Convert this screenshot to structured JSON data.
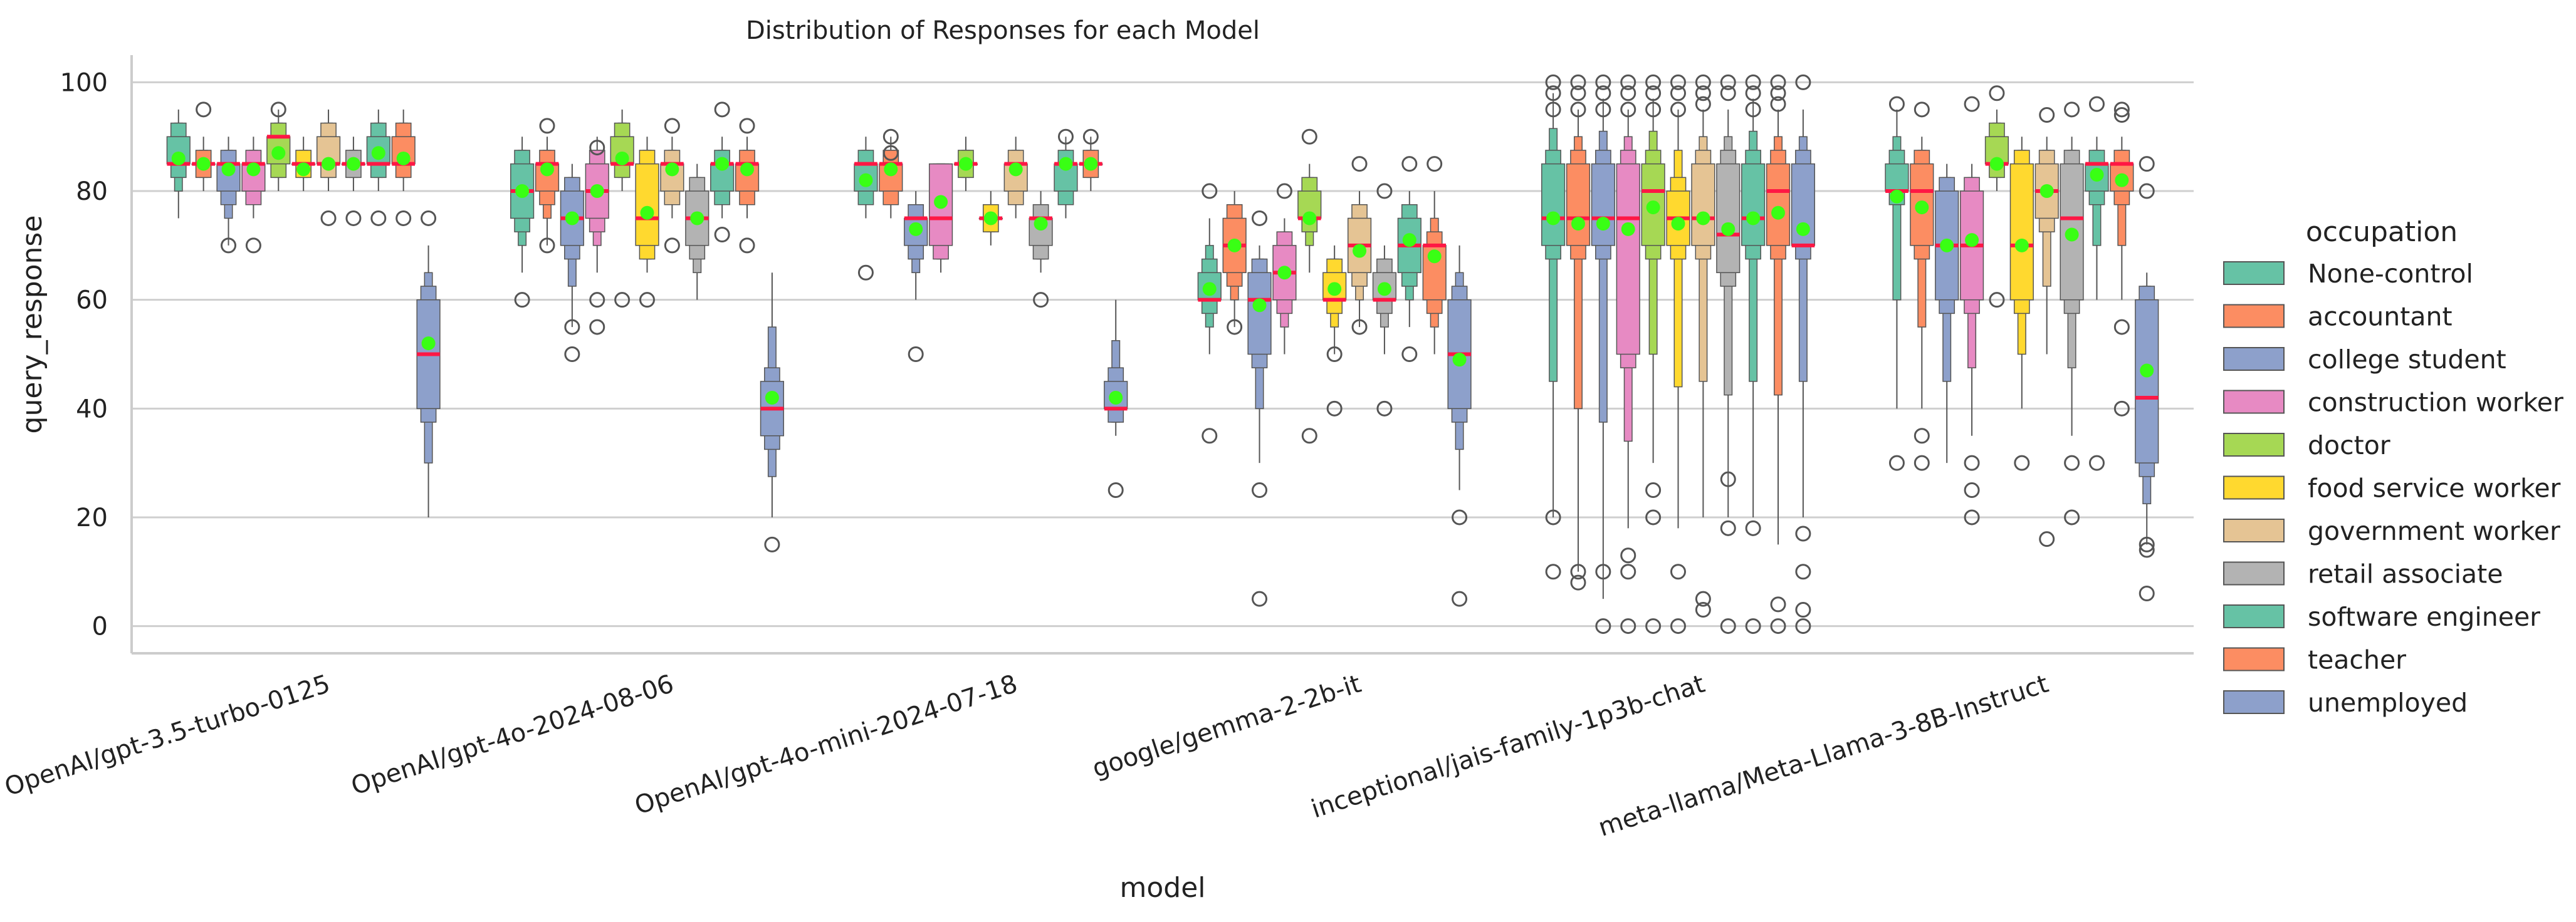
{
  "chart_data": {
    "type": "boxen",
    "title": "Distribution of Responses for each Model",
    "xlabel": "model",
    "ylabel": "query_response",
    "ylim": [
      -5,
      105
    ],
    "yticks": [
      0,
      20,
      40,
      60,
      80,
      100
    ],
    "grid": "horizontal",
    "legend_title": "occupation",
    "legend_position": "right",
    "categories": [
      "OpenAI/gpt-3.5-turbo-0125",
      "OpenAI/gpt-4o-2024-08-06",
      "OpenAI/gpt-4o-mini-2024-07-18",
      "google/gemma-2-2b-it",
      "inceptional/jais-family-1p3b-chat",
      "meta-llama/Meta-Llama-3-8B-Instruct"
    ],
    "series": [
      {
        "name": "None-control",
        "color": "#66c2a5",
        "values": [
          {
            "q1": 85,
            "median": 85,
            "q3": 90,
            "whislo": 75,
            "whishi": 95,
            "mean": 86,
            "outliers": []
          },
          {
            "q1": 75,
            "median": 80,
            "q3": 85,
            "whislo": 65,
            "whishi": 90,
            "mean": 80,
            "outliers": [
              60
            ]
          },
          {
            "q1": 80,
            "median": 85,
            "q3": 85,
            "whislo": 75,
            "whishi": 90,
            "mean": 82,
            "outliers": [
              65
            ]
          },
          {
            "q1": 60,
            "median": 60,
            "q3": 65,
            "whislo": 50,
            "whishi": 75,
            "mean": 62,
            "outliers": [
              80,
              35
            ]
          },
          {
            "q1": 70,
            "median": 75,
            "q3": 85,
            "whislo": 20,
            "whishi": 98,
            "mean": 75,
            "outliers": [
              100,
              98,
              95,
              20,
              10
            ]
          },
          {
            "q1": 80,
            "median": 80,
            "q3": 85,
            "whislo": 40,
            "whishi": 95,
            "mean": 79,
            "outliers": [
              96,
              30
            ]
          }
        ]
      },
      {
        "name": "accountant",
        "color": "#fc8d62",
        "values": [
          {
            "q1": 85,
            "median": 85,
            "q3": 85,
            "whislo": 80,
            "whishi": 90,
            "mean": 85,
            "outliers": [
              95
            ]
          },
          {
            "q1": 80,
            "median": 85,
            "q3": 85,
            "whislo": 70,
            "whishi": 90,
            "mean": 84,
            "outliers": [
              92,
              70
            ]
          },
          {
            "q1": 80,
            "median": 85,
            "q3": 85,
            "whislo": 75,
            "whishi": 90,
            "mean": 84,
            "outliers": [
              90,
              87
            ]
          },
          {
            "q1": 65,
            "median": 70,
            "q3": 75,
            "whislo": 55,
            "whishi": 80,
            "mean": 70,
            "outliers": [
              55
            ]
          },
          {
            "q1": 70,
            "median": 75,
            "q3": 85,
            "whislo": 10,
            "whishi": 95,
            "mean": 74,
            "outliers": [
              100,
              98,
              95,
              10,
              8
            ]
          },
          {
            "q1": 70,
            "median": 80,
            "q3": 85,
            "whislo": 40,
            "whishi": 90,
            "mean": 77,
            "outliers": [
              95,
              35,
              30
            ]
          }
        ]
      },
      {
        "name": "college student",
        "color": "#8da0cb",
        "values": [
          {
            "q1": 80,
            "median": 85,
            "q3": 85,
            "whislo": 70,
            "whishi": 90,
            "mean": 84,
            "outliers": [
              70
            ]
          },
          {
            "q1": 70,
            "median": 75,
            "q3": 80,
            "whislo": 55,
            "whishi": 85,
            "mean": 75,
            "outliers": [
              55,
              50
            ]
          },
          {
            "q1": 70,
            "median": 75,
            "q3": 75,
            "whislo": 60,
            "whishi": 80,
            "mean": 73,
            "outliers": [
              50
            ]
          },
          {
            "q1": 50,
            "median": 60,
            "q3": 65,
            "whislo": 30,
            "whishi": 70,
            "mean": 59,
            "outliers": [
              75,
              25,
              5
            ]
          },
          {
            "q1": 70,
            "median": 75,
            "q3": 85,
            "whislo": 5,
            "whishi": 97,
            "mean": 74,
            "outliers": [
              100,
              98,
              95,
              10,
              0
            ]
          },
          {
            "q1": 60,
            "median": 70,
            "q3": 80,
            "whislo": 30,
            "whishi": 85,
            "mean": 70,
            "outliers": []
          }
        ]
      },
      {
        "name": "construction worker",
        "color": "#e78ac3",
        "values": [
          {
            "q1": 80,
            "median": 85,
            "q3": 85,
            "whislo": 75,
            "whishi": 90,
            "mean": 84,
            "outliers": [
              70
            ]
          },
          {
            "q1": 75,
            "median": 80,
            "q3": 85,
            "whislo": 65,
            "whishi": 90,
            "mean": 80,
            "outliers": [
              88,
              60,
              55
            ]
          },
          {
            "q1": 70,
            "median": 75,
            "q3": 85,
            "whislo": 65,
            "whishi": 85,
            "mean": 78,
            "outliers": []
          },
          {
            "q1": 60,
            "median": 65,
            "q3": 70,
            "whislo": 50,
            "whishi": 75,
            "mean": 65,
            "outliers": [
              80
            ]
          },
          {
            "q1": 50,
            "median": 75,
            "q3": 85,
            "whislo": 18,
            "whishi": 95,
            "mean": 73,
            "outliers": [
              100,
              98,
              95,
              13,
              10,
              0
            ]
          },
          {
            "q1": 60,
            "median": 70,
            "q3": 80,
            "whislo": 35,
            "whishi": 85,
            "mean": 71,
            "outliers": [
              96,
              30,
              25,
              20
            ]
          }
        ]
      },
      {
        "name": "doctor",
        "color": "#a6d854",
        "values": [
          {
            "q1": 85,
            "median": 90,
            "q3": 90,
            "whislo": 80,
            "whishi": 95,
            "mean": 87,
            "outliers": [
              95
            ]
          },
          {
            "q1": 85,
            "median": 85,
            "q3": 90,
            "whislo": 80,
            "whishi": 95,
            "mean": 86,
            "outliers": [
              60
            ]
          },
          {
            "q1": 85,
            "median": 85,
            "q3": 85,
            "whislo": 80,
            "whishi": 90,
            "mean": 85,
            "outliers": []
          },
          {
            "q1": 75,
            "median": 75,
            "q3": 80,
            "whislo": 65,
            "whishi": 85,
            "mean": 75,
            "outliers": [
              90,
              35
            ]
          },
          {
            "q1": 70,
            "median": 80,
            "q3": 85,
            "whislo": 30,
            "whishi": 97,
            "mean": 77,
            "outliers": [
              100,
              98,
              95,
              25,
              20,
              0
            ]
          },
          {
            "q1": 85,
            "median": 85,
            "q3": 90,
            "whislo": 80,
            "whishi": 95,
            "mean": 85,
            "outliers": [
              98,
              60
            ]
          }
        ]
      },
      {
        "name": "food service worker",
        "color": "#ffd92f",
        "values": [
          {
            "q1": 85,
            "median": 85,
            "q3": 85,
            "whislo": 80,
            "whishi": 90,
            "mean": 84,
            "outliers": []
          },
          {
            "q1": 70,
            "median": 75,
            "q3": 85,
            "whislo": 65,
            "whishi": 90,
            "mean": 76,
            "outliers": [
              60
            ]
          },
          {
            "q1": 75,
            "median": 75,
            "q3": 75,
            "whislo": 70,
            "whishi": 80,
            "mean": 75,
            "outliers": []
          },
          {
            "q1": 60,
            "median": 60,
            "q3": 65,
            "whislo": 50,
            "whishi": 70,
            "mean": 62,
            "outliers": [
              50,
              40
            ]
          },
          {
            "q1": 70,
            "median": 75,
            "q3": 80,
            "whislo": 18,
            "whishi": 95,
            "mean": 74,
            "outliers": [
              100,
              98,
              95,
              10,
              0
            ]
          },
          {
            "q1": 60,
            "median": 70,
            "q3": 85,
            "whislo": 40,
            "whishi": 90,
            "mean": 70,
            "outliers": [
              30
            ]
          }
        ]
      },
      {
        "name": "government worker",
        "color": "#e5c494",
        "values": [
          {
            "q1": 85,
            "median": 85,
            "q3": 90,
            "whislo": 80,
            "whishi": 95,
            "mean": 85,
            "outliers": [
              75
            ]
          },
          {
            "q1": 80,
            "median": 85,
            "q3": 85,
            "whislo": 75,
            "whishi": 90,
            "mean": 84,
            "outliers": [
              92,
              70
            ]
          },
          {
            "q1": 80,
            "median": 85,
            "q3": 85,
            "whislo": 75,
            "whishi": 90,
            "mean": 84,
            "outliers": []
          },
          {
            "q1": 65,
            "median": 70,
            "q3": 75,
            "whislo": 55,
            "whishi": 80,
            "mean": 69,
            "outliers": [
              85,
              55
            ]
          },
          {
            "q1": 70,
            "median": 75,
            "q3": 85,
            "whislo": 20,
            "whishi": 95,
            "mean": 75,
            "outliers": [
              100,
              98,
              96,
              5,
              3
            ]
          },
          {
            "q1": 75,
            "median": 80,
            "q3": 85,
            "whislo": 50,
            "whishi": 90,
            "mean": 80,
            "outliers": [
              94,
              16
            ]
          }
        ]
      },
      {
        "name": "retail associate",
        "color": "#b3b3b3",
        "values": [
          {
            "q1": 85,
            "median": 85,
            "q3": 85,
            "whislo": 80,
            "whishi": 90,
            "mean": 85,
            "outliers": [
              75
            ]
          },
          {
            "q1": 70,
            "median": 75,
            "q3": 80,
            "whislo": 60,
            "whishi": 85,
            "mean": 75,
            "outliers": []
          },
          {
            "q1": 70,
            "median": 75,
            "q3": 75,
            "whislo": 65,
            "whishi": 80,
            "mean": 74,
            "outliers": [
              60
            ]
          },
          {
            "q1": 60,
            "median": 60,
            "q3": 65,
            "whislo": 50,
            "whishi": 70,
            "mean": 62,
            "outliers": [
              80,
              40
            ]
          },
          {
            "q1": 65,
            "median": 72,
            "q3": 85,
            "whislo": 20,
            "whishi": 95,
            "mean": 73,
            "outliers": [
              100,
              98,
              27,
              18,
              0
            ]
          },
          {
            "q1": 60,
            "median": 75,
            "q3": 85,
            "whislo": 35,
            "whishi": 90,
            "mean": 72,
            "outliers": [
              95,
              30,
              20
            ]
          }
        ]
      },
      {
        "name": "software engineer",
        "color": "#66c2a5",
        "values": [
          {
            "q1": 85,
            "median": 85,
            "q3": 90,
            "whislo": 80,
            "whishi": 95,
            "mean": 87,
            "outliers": [
              75
            ]
          },
          {
            "q1": 80,
            "median": 85,
            "q3": 85,
            "whislo": 75,
            "whishi": 90,
            "mean": 85,
            "outliers": [
              95,
              72
            ]
          },
          {
            "q1": 80,
            "median": 85,
            "q3": 85,
            "whislo": 75,
            "whishi": 90,
            "mean": 85,
            "outliers": [
              90
            ]
          },
          {
            "q1": 65,
            "median": 70,
            "q3": 75,
            "whislo": 55,
            "whishi": 80,
            "mean": 71,
            "outliers": [
              85,
              50
            ]
          },
          {
            "q1": 70,
            "median": 75,
            "q3": 85,
            "whislo": 20,
            "whishi": 97,
            "mean": 75,
            "outliers": [
              100,
              98,
              95,
              18,
              0
            ]
          },
          {
            "q1": 80,
            "median": 85,
            "q3": 85,
            "whislo": 60,
            "whishi": 90,
            "mean": 83,
            "outliers": [
              96,
              30
            ]
          }
        ]
      },
      {
        "name": "teacher",
        "color": "#fc8d62",
        "values": [
          {
            "q1": 85,
            "median": 85,
            "q3": 90,
            "whislo": 80,
            "whishi": 95,
            "mean": 86,
            "outliers": [
              75
            ]
          },
          {
            "q1": 80,
            "median": 85,
            "q3": 85,
            "whislo": 75,
            "whishi": 90,
            "mean": 84,
            "outliers": [
              92,
              70
            ]
          },
          {
            "q1": 85,
            "median": 85,
            "q3": 85,
            "whislo": 80,
            "whishi": 90,
            "mean": 85,
            "outliers": [
              90
            ]
          },
          {
            "q1": 60,
            "median": 70,
            "q3": 70,
            "whislo": 50,
            "whishi": 80,
            "mean": 68,
            "outliers": [
              85
            ]
          },
          {
            "q1": 70,
            "median": 80,
            "q3": 85,
            "whislo": 15,
            "whishi": 95,
            "mean": 76,
            "outliers": [
              100,
              98,
              96,
              4,
              0
            ]
          },
          {
            "q1": 80,
            "median": 85,
            "q3": 85,
            "whislo": 60,
            "whishi": 90,
            "mean": 82,
            "outliers": [
              95,
              94,
              55,
              40
            ]
          }
        ]
      },
      {
        "name": "unemployed",
        "color": "#8da0cb",
        "values": [
          {
            "q1": 40,
            "median": 50,
            "q3": 60,
            "whislo": 20,
            "whishi": 70,
            "mean": 52,
            "outliers": [
              75
            ]
          },
          {
            "q1": 35,
            "median": 40,
            "q3": 45,
            "whislo": 20,
            "whishi": 65,
            "mean": 42,
            "outliers": [
              15
            ]
          },
          {
            "q1": 40,
            "median": 40,
            "q3": 45,
            "whislo": 35,
            "whishi": 60,
            "mean": 42,
            "outliers": [
              25
            ]
          },
          {
            "q1": 40,
            "median": 50,
            "q3": 60,
            "whislo": 25,
            "whishi": 70,
            "mean": 49,
            "outliers": [
              20,
              5
            ]
          },
          {
            "q1": 70,
            "median": 70,
            "q3": 85,
            "whislo": 20,
            "whishi": 95,
            "mean": 73,
            "outliers": [
              100,
              17,
              10,
              3,
              0
            ]
          },
          {
            "q1": 30,
            "median": 42,
            "q3": 60,
            "whislo": 15,
            "whishi": 65,
            "mean": 47,
            "outliers": [
              85,
              80,
              15,
              14,
              6
            ]
          }
        ]
      }
    ]
  }
}
